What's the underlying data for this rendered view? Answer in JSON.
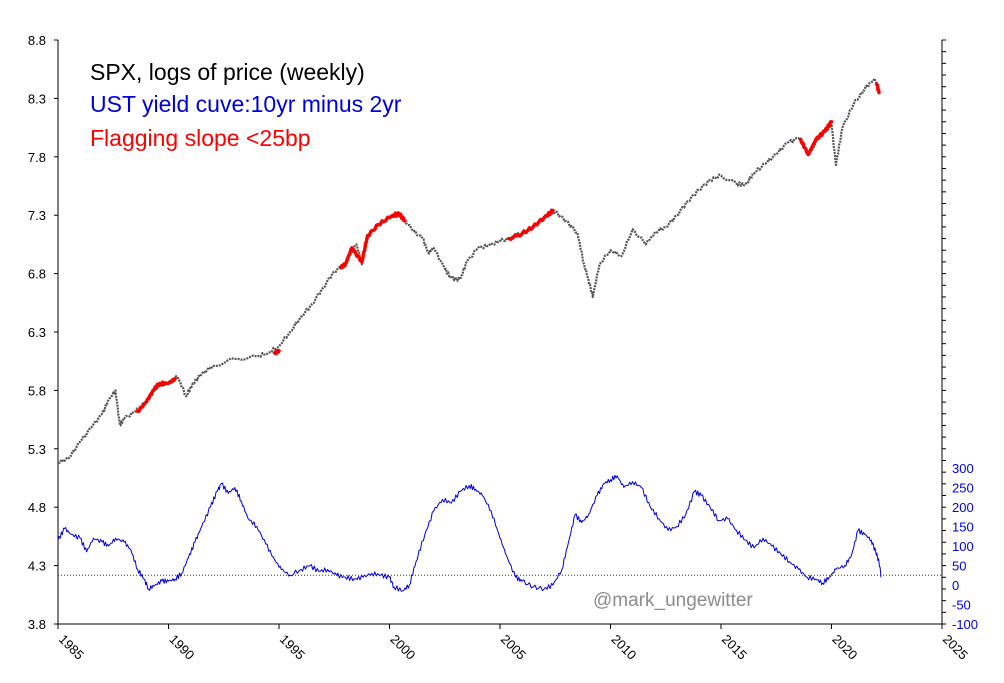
{
  "chart_data": {
    "type": "line",
    "legend": [
      {
        "text": "SPX, logs of price (weekly)",
        "color": "#000000"
      },
      {
        "text": "UST yield cuve:10yr minus 2yr",
        "color": "#0000dd"
      },
      {
        "text": "Flagging slope <25bp",
        "color": "#ff0000"
      }
    ],
    "watermark": "@mark_ungewitter",
    "x_axis": {
      "min": 1985,
      "max": 2025,
      "ticks": [
        1985,
        1990,
        1995,
        2000,
        2005,
        2010,
        2015,
        2020,
        2025
      ],
      "tick_labels": [
        "1985",
        "1990",
        "1995",
        "2000",
        "2005",
        "2010",
        "2015",
        "2020",
        "2025"
      ]
    },
    "y_left": {
      "min": 3.8,
      "max": 8.8,
      "ticks": [
        3.8,
        4.3,
        4.8,
        5.3,
        5.8,
        6.3,
        6.8,
        7.3,
        7.8,
        8.3,
        8.8
      ],
      "tick_labels": [
        "3.8",
        "4.3",
        "4.8",
        "5.3",
        "5.8",
        "6.3",
        "6.8",
        "7.3",
        "7.8",
        "8.3",
        "8.8"
      ]
    },
    "y_right": {
      "min": -100,
      "max": 300,
      "ticks": [
        -100,
        -50,
        0,
        50,
        100,
        150,
        200,
        250,
        300
      ],
      "tick_labels": [
        "-100",
        "-50",
        "0",
        "50",
        "100",
        "150",
        "200",
        "250",
        "300"
      ]
    },
    "reference_line": {
      "value": 25,
      "axis": "right",
      "style": "dotted"
    },
    "series": [
      {
        "name": "SPX, logs of price (weekly)",
        "axis": "left",
        "color": "#555555",
        "points": [
          [
            1985.0,
            5.18
          ],
          [
            1985.5,
            5.22
          ],
          [
            1986.0,
            5.36
          ],
          [
            1986.5,
            5.48
          ],
          [
            1987.0,
            5.6
          ],
          [
            1987.3,
            5.72
          ],
          [
            1987.6,
            5.8
          ],
          [
            1987.8,
            5.5
          ],
          [
            1988.0,
            5.56
          ],
          [
            1988.5,
            5.62
          ],
          [
            1989.0,
            5.7
          ],
          [
            1989.5,
            5.84
          ],
          [
            1990.0,
            5.86
          ],
          [
            1990.4,
            5.92
          ],
          [
            1990.8,
            5.75
          ],
          [
            1991.1,
            5.86
          ],
          [
            1991.5,
            5.94
          ],
          [
            1992.0,
            6.01
          ],
          [
            1993.0,
            6.07
          ],
          [
            1994.0,
            6.09
          ],
          [
            1994.5,
            6.12
          ],
          [
            1995.0,
            6.18
          ],
          [
            1995.5,
            6.3
          ],
          [
            1996.0,
            6.43
          ],
          [
            1996.5,
            6.54
          ],
          [
            1997.0,
            6.68
          ],
          [
            1997.5,
            6.82
          ],
          [
            1998.0,
            6.88
          ],
          [
            1998.5,
            7.05
          ],
          [
            1998.75,
            6.88
          ],
          [
            1999.0,
            7.14
          ],
          [
            1999.5,
            7.21
          ],
          [
            2000.0,
            7.28
          ],
          [
            2000.5,
            7.3
          ],
          [
            2001.0,
            7.18
          ],
          [
            2001.5,
            7.1
          ],
          [
            2001.75,
            6.98
          ],
          [
            2002.0,
            7.02
          ],
          [
            2002.5,
            6.84
          ],
          [
            2002.8,
            6.76
          ],
          [
            2003.2,
            6.75
          ],
          [
            2003.5,
            6.9
          ],
          [
            2004.0,
            7.02
          ],
          [
            2004.5,
            7.04
          ],
          [
            2005.0,
            7.08
          ],
          [
            2005.5,
            7.1
          ],
          [
            2006.0,
            7.15
          ],
          [
            2006.5,
            7.2
          ],
          [
            2007.0,
            7.28
          ],
          [
            2007.5,
            7.33
          ],
          [
            2008.0,
            7.25
          ],
          [
            2008.5,
            7.15
          ],
          [
            2008.8,
            6.88
          ],
          [
            2009.0,
            6.75
          ],
          [
            2009.2,
            6.6
          ],
          [
            2009.5,
            6.88
          ],
          [
            2010.0,
            7.0
          ],
          [
            2010.5,
            6.95
          ],
          [
            2011.0,
            7.18
          ],
          [
            2011.6,
            7.05
          ],
          [
            2012.0,
            7.15
          ],
          [
            2012.5,
            7.2
          ],
          [
            2013.0,
            7.3
          ],
          [
            2013.5,
            7.42
          ],
          [
            2014.0,
            7.52
          ],
          [
            2014.5,
            7.6
          ],
          [
            2015.0,
            7.64
          ],
          [
            2015.7,
            7.57
          ],
          [
            2016.1,
            7.56
          ],
          [
            2016.5,
            7.66
          ],
          [
            2017.0,
            7.74
          ],
          [
            2017.5,
            7.82
          ],
          [
            2018.0,
            7.92
          ],
          [
            2018.5,
            7.96
          ],
          [
            2018.95,
            7.82
          ],
          [
            2019.5,
            7.98
          ],
          [
            2020.0,
            8.08
          ],
          [
            2020.2,
            7.73
          ],
          [
            2020.5,
            8.05
          ],
          [
            2021.0,
            8.25
          ],
          [
            2021.5,
            8.38
          ],
          [
            2021.95,
            8.47
          ],
          [
            2022.15,
            8.37
          ]
        ]
      },
      {
        "name": "Flagging slope <25bp",
        "axis": "left",
        "color": "#ff0000",
        "segments": [
          [
            [
              1988.6,
              5.62
            ],
            [
              1989.0,
              5.7
            ],
            [
              1989.3,
              5.8
            ],
            [
              1989.6,
              5.86
            ],
            [
              1990.0,
              5.86
            ],
            [
              1990.3,
              5.9
            ]
          ],
          [
            [
              1994.8,
              6.12
            ],
            [
              1995.0,
              6.14
            ]
          ],
          [
            [
              1997.8,
              6.85
            ],
            [
              1998.0,
              6.88
            ],
            [
              1998.3,
              7.02
            ],
            [
              1998.75,
              6.9
            ],
            [
              1999.0,
              7.12
            ],
            [
              1999.5,
              7.22
            ],
            [
              2000.0,
              7.28
            ],
            [
              2000.4,
              7.32
            ],
            [
              2000.7,
              7.25
            ]
          ],
          [
            [
              2005.4,
              7.1
            ],
            [
              2006.0,
              7.14
            ],
            [
              2006.5,
              7.2
            ],
            [
              2007.0,
              7.28
            ],
            [
              2007.4,
              7.34
            ]
          ],
          [
            [
              2018.6,
              7.95
            ],
            [
              2018.95,
              7.82
            ],
            [
              2019.3,
              7.95
            ],
            [
              2019.7,
              8.02
            ],
            [
              2020.0,
              8.1
            ]
          ],
          [
            [
              2022.05,
              8.42
            ],
            [
              2022.15,
              8.35
            ]
          ]
        ]
      },
      {
        "name": "UST yield cuve:10yr minus 2yr",
        "axis": "right",
        "color": "#0000dd",
        "points": [
          [
            1985.0,
            115
          ],
          [
            1985.3,
            145
          ],
          [
            1985.6,
            130
          ],
          [
            1986.0,
            120
          ],
          [
            1986.3,
            85
          ],
          [
            1986.6,
            120
          ],
          [
            1987.0,
            110
          ],
          [
            1987.3,
            100
          ],
          [
            1987.6,
            120
          ],
          [
            1988.0,
            110
          ],
          [
            1988.3,
            90
          ],
          [
            1988.6,
            40
          ],
          [
            1988.9,
            15
          ],
          [
            1989.1,
            -10
          ],
          [
            1989.4,
            0
          ],
          [
            1989.7,
            10
          ],
          [
            1990.0,
            10
          ],
          [
            1990.3,
            15
          ],
          [
            1990.6,
            30
          ],
          [
            1990.9,
            70
          ],
          [
            1991.2,
            110
          ],
          [
            1991.5,
            150
          ],
          [
            1991.9,
            200
          ],
          [
            1992.2,
            240
          ],
          [
            1992.4,
            260
          ],
          [
            1992.7,
            235
          ],
          [
            1993.0,
            250
          ],
          [
            1993.3,
            215
          ],
          [
            1993.6,
            170
          ],
          [
            1994.0,
            150
          ],
          [
            1994.4,
            105
          ],
          [
            1994.8,
            65
          ],
          [
            1995.1,
            40
          ],
          [
            1995.5,
            25
          ],
          [
            1996.0,
            40
          ],
          [
            1996.4,
            50
          ],
          [
            1996.8,
            35
          ],
          [
            1997.2,
            40
          ],
          [
            1997.6,
            25
          ],
          [
            1998.0,
            20
          ],
          [
            1998.4,
            15
          ],
          [
            1998.8,
            20
          ],
          [
            1999.2,
            30
          ],
          [
            1999.6,
            25
          ],
          [
            2000.0,
            20
          ],
          [
            2000.2,
            -5
          ],
          [
            2000.6,
            -15
          ],
          [
            2000.9,
            0
          ],
          [
            2001.2,
            60
          ],
          [
            2001.6,
            130
          ],
          [
            2002.0,
            190
          ],
          [
            2002.4,
            220
          ],
          [
            2002.8,
            210
          ],
          [
            2003.2,
            240
          ],
          [
            2003.6,
            255
          ],
          [
            2003.9,
            245
          ],
          [
            2004.2,
            230
          ],
          [
            2004.6,
            190
          ],
          [
            2005.0,
            120
          ],
          [
            2005.3,
            75
          ],
          [
            2005.7,
            20
          ],
          [
            2006.0,
            10
          ],
          [
            2006.5,
            -5
          ],
          [
            2007.0,
            -10
          ],
          [
            2007.4,
            0
          ],
          [
            2007.8,
            40
          ],
          [
            2008.1,
            110
          ],
          [
            2008.4,
            180
          ],
          [
            2008.7,
            160
          ],
          [
            2009.0,
            180
          ],
          [
            2009.4,
            230
          ],
          [
            2009.7,
            260
          ],
          [
            2010.0,
            270
          ],
          [
            2010.3,
            280
          ],
          [
            2010.6,
            250
          ],
          [
            2011.0,
            265
          ],
          [
            2011.4,
            250
          ],
          [
            2011.8,
            200
          ],
          [
            2012.2,
            170
          ],
          [
            2012.6,
            140
          ],
          [
            2013.0,
            150
          ],
          [
            2013.4,
            180
          ],
          [
            2013.8,
            240
          ],
          [
            2014.1,
            230
          ],
          [
            2014.5,
            200
          ],
          [
            2014.9,
            165
          ],
          [
            2015.3,
            170
          ],
          [
            2015.7,
            140
          ],
          [
            2016.1,
            115
          ],
          [
            2016.5,
            95
          ],
          [
            2016.9,
            120
          ],
          [
            2017.3,
            100
          ],
          [
            2017.7,
            80
          ],
          [
            2018.1,
            60
          ],
          [
            2018.5,
            40
          ],
          [
            2018.9,
            20
          ],
          [
            2019.3,
            15
          ],
          [
            2019.6,
            5
          ],
          [
            2019.9,
            20
          ],
          [
            2020.2,
            40
          ],
          [
            2020.6,
            50
          ],
          [
            2020.9,
            75
          ],
          [
            2021.2,
            140
          ],
          [
            2021.5,
            130
          ],
          [
            2021.8,
            115
          ],
          [
            2022.0,
            85
          ],
          [
            2022.15,
            60
          ],
          [
            2022.25,
            20
          ]
        ]
      }
    ]
  }
}
